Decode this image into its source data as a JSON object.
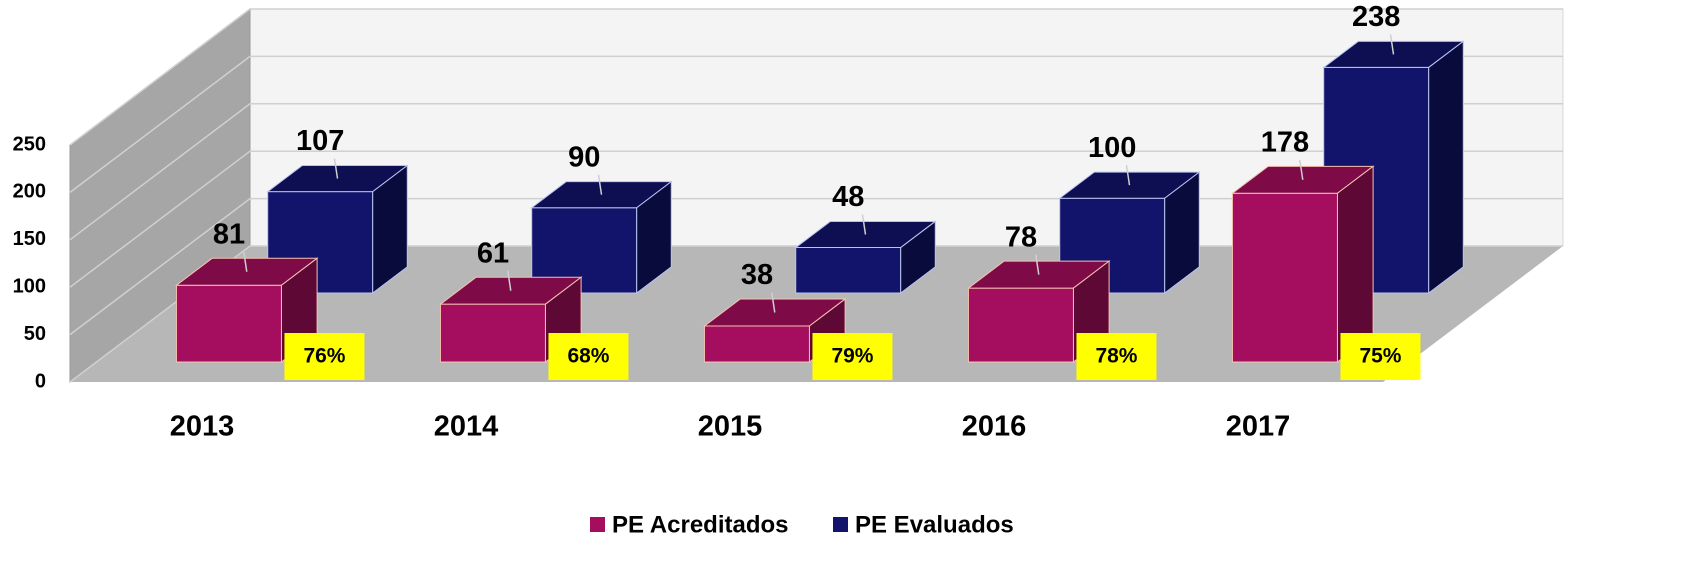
{
  "chart_data": {
    "type": "bar3d",
    "categories": [
      "2013",
      "2014",
      "2015",
      "2016",
      "2017"
    ],
    "series": [
      {
        "name": "PE Acreditados",
        "color": "#a50d5e",
        "values": [
          81,
          61,
          38,
          78,
          178
        ]
      },
      {
        "name": "PE Evaluados",
        "color": "#12136a",
        "values": [
          107,
          90,
          48,
          100,
          238
        ]
      }
    ],
    "annotations": [
      "76%",
      "68%",
      "79%",
      "78%",
      "75%"
    ],
    "ylim": [
      0,
      250
    ],
    "yticks": [
      0,
      50,
      100,
      150,
      200,
      250
    ],
    "grid": true
  }
}
